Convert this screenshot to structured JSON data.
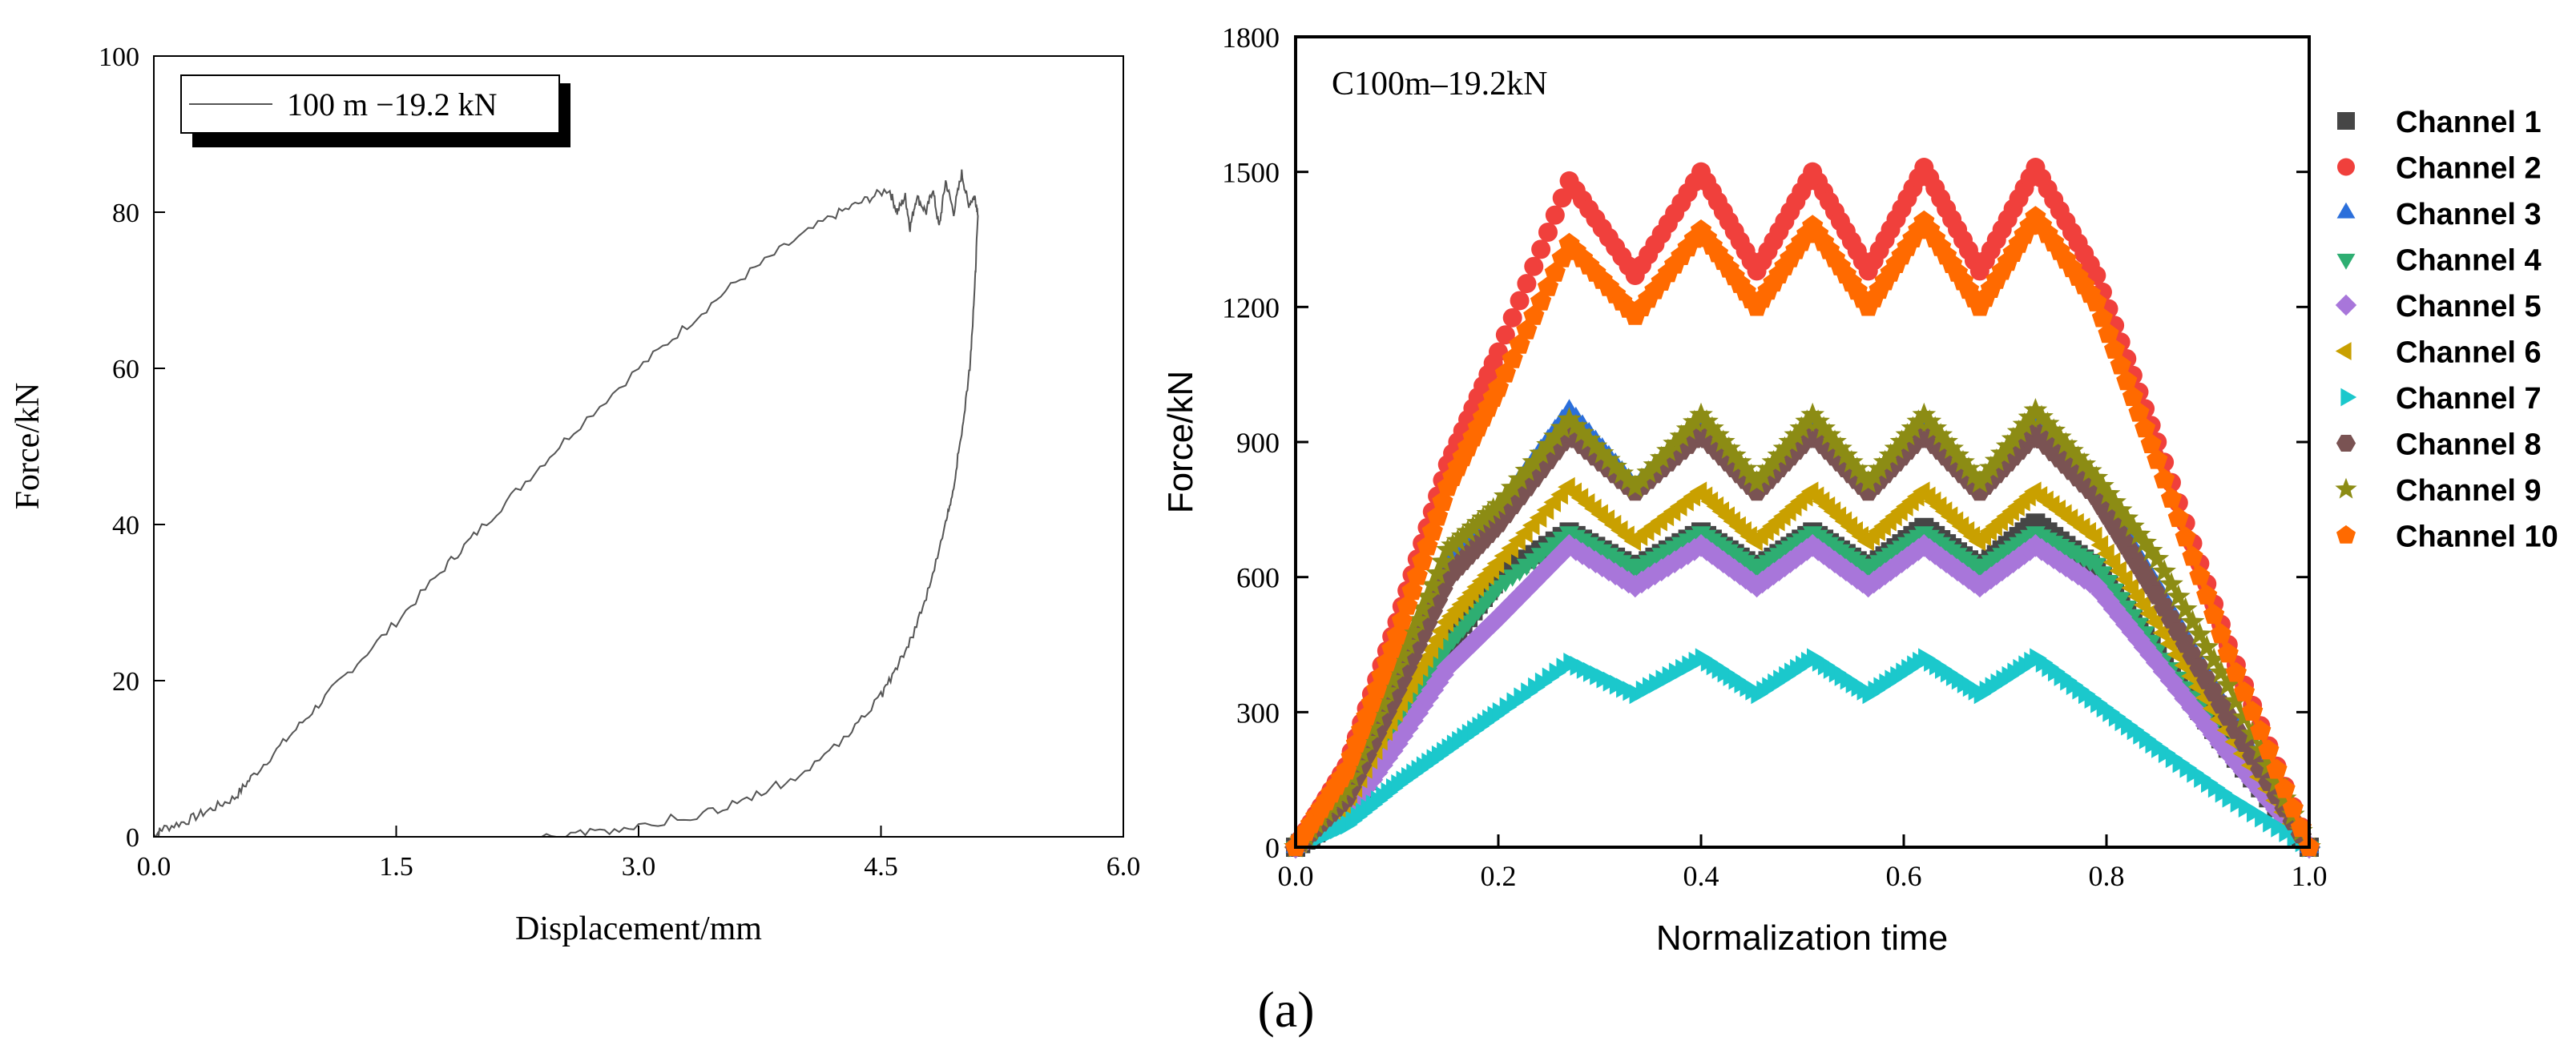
{
  "figure_label": "(a)",
  "chart_data": [
    {
      "type": "line",
      "xlabel": "Displacement/mm",
      "ylabel": "Force/kN",
      "xlim": [
        0,
        6
      ],
      "ylim": [
        0,
        100
      ],
      "xticks": [
        "0.0",
        "1.5",
        "3.0",
        "4.5",
        "6.0"
      ],
      "yticks": [
        "0",
        "20",
        "40",
        "60",
        "80",
        "100"
      ],
      "legend": {
        "position": "top-left",
        "entries": [
          "100 m −19.2 kN"
        ]
      },
      "series": [
        {
          "name": "100 m −19.2 kN",
          "color": "#555555",
          "x": [
            0,
            0.05,
            0.2,
            0.35,
            0.5,
            0.6,
            0.8,
            1.0,
            1.2,
            1.5,
            1.8,
            2.0,
            2.3,
            2.6,
            3.0,
            3.3,
            3.6,
            3.9,
            4.2,
            4.4,
            4.55,
            4.6,
            4.65,
            4.68,
            4.72,
            4.78,
            4.82,
            4.86,
            4.9,
            4.95,
            5.0,
            5.04,
            5.08,
            5.1,
            5.08,
            5.05,
            5.0,
            4.95,
            4.9,
            4.8,
            4.7,
            4.6,
            4.5,
            4.3,
            4.0,
            3.7,
            3.4,
            3.0,
            2.7,
            2.4
          ],
          "y": [
            0,
            1,
            2,
            3.5,
            5,
            7.5,
            12,
            16.5,
            21,
            27.5,
            34.5,
            39,
            45.5,
            52,
            60,
            65.5,
            71,
            75.5,
            79.5,
            81.5,
            83,
            80,
            82,
            78,
            82,
            80,
            83,
            78,
            84,
            80,
            85,
            81,
            82,
            80,
            70,
            60,
            52,
            45,
            40,
            32,
            26,
            22,
            18,
            13,
            8,
            5,
            3,
            1.5,
            0.5,
            0
          ]
        }
      ]
    },
    {
      "type": "line",
      "title": "C100m–19.2kN",
      "xlabel": "Normalization time",
      "ylabel": "Force/kN",
      "xlim": [
        0,
        1
      ],
      "ylim": [
        0,
        1800
      ],
      "xticks": [
        "0.0",
        "0.2",
        "0.4",
        "0.6",
        "0.8",
        "1.0"
      ],
      "yticks": [
        "0",
        "300",
        "600",
        "900",
        "1200",
        "1500",
        "1800"
      ],
      "legend": {
        "position": "right"
      },
      "x": [
        0,
        0.05,
        0.1,
        0.15,
        0.2,
        0.27,
        0.335,
        0.4,
        0.455,
        0.51,
        0.565,
        0.62,
        0.675,
        0.73,
        0.79,
        0.85,
        0.92,
        1.0
      ],
      "series": [
        {
          "name": "Channel 1",
          "color": "#464646",
          "marker": "square",
          "values": [
            0,
            80,
            250,
            450,
            600,
            700,
            620,
            700,
            620,
            700,
            620,
            710,
            620,
            720,
            620,
            430,
            220,
            0
          ]
        },
        {
          "name": "Channel 2",
          "color": "#F0403C",
          "marker": "circle",
          "values": [
            0,
            180,
            500,
            850,
            1100,
            1480,
            1270,
            1500,
            1280,
            1500,
            1280,
            1510,
            1280,
            1510,
            1270,
            900,
            450,
            0
          ]
        },
        {
          "name": "Channel 3",
          "color": "#2B6FDB",
          "marker": "triangle-up",
          "values": [
            0,
            120,
            380,
            640,
            750,
            970,
            800,
            950,
            800,
            950,
            800,
            950,
            800,
            950,
            800,
            580,
            300,
            0
          ]
        },
        {
          "name": "Channel 4",
          "color": "#2EAE72",
          "marker": "triangle-down",
          "values": [
            0,
            80,
            260,
            450,
            580,
            700,
            620,
            700,
            620,
            700,
            620,
            700,
            620,
            700,
            630,
            440,
            230,
            0
          ]
        },
        {
          "name": "Channel 5",
          "color": "#A876DA",
          "marker": "diamond",
          "values": [
            0,
            70,
            230,
            400,
            510,
            670,
            580,
            670,
            580,
            670,
            580,
            670,
            580,
            670,
            580,
            410,
            210,
            0
          ]
        },
        {
          "name": "Channel 6",
          "color": "#C9A000",
          "marker": "triangle-left",
          "values": [
            0,
            90,
            300,
            500,
            630,
            800,
            680,
            790,
            680,
            790,
            680,
            790,
            680,
            790,
            690,
            500,
            260,
            0
          ]
        },
        {
          "name": "Channel 7",
          "color": "#1BC8CC",
          "marker": "triangle-right",
          "values": [
            0,
            50,
            140,
            220,
            300,
            410,
            340,
            420,
            340,
            420,
            340,
            420,
            340,
            420,
            320,
            220,
            110,
            0
          ]
        },
        {
          "name": "Channel 8",
          "color": "#7A5353",
          "marker": "hexagon",
          "values": [
            0,
            110,
            350,
            600,
            720,
            920,
            790,
            920,
            790,
            920,
            790,
            920,
            790,
            920,
            780,
            560,
            290,
            0
          ]
        },
        {
          "name": "Channel 9",
          "color": "#8C8C14",
          "marker": "star",
          "values": [
            0,
            130,
            400,
            660,
            760,
            950,
            800,
            960,
            810,
            960,
            810,
            960,
            810,
            970,
            820,
            640,
            360,
            0
          ]
        },
        {
          "name": "Channel 10",
          "color": "#FF6A00",
          "marker": "pentagon",
          "values": [
            0,
            170,
            470,
            800,
            1020,
            1340,
            1180,
            1370,
            1200,
            1380,
            1200,
            1390,
            1200,
            1400,
            1210,
            860,
            430,
            0
          ]
        }
      ]
    }
  ]
}
